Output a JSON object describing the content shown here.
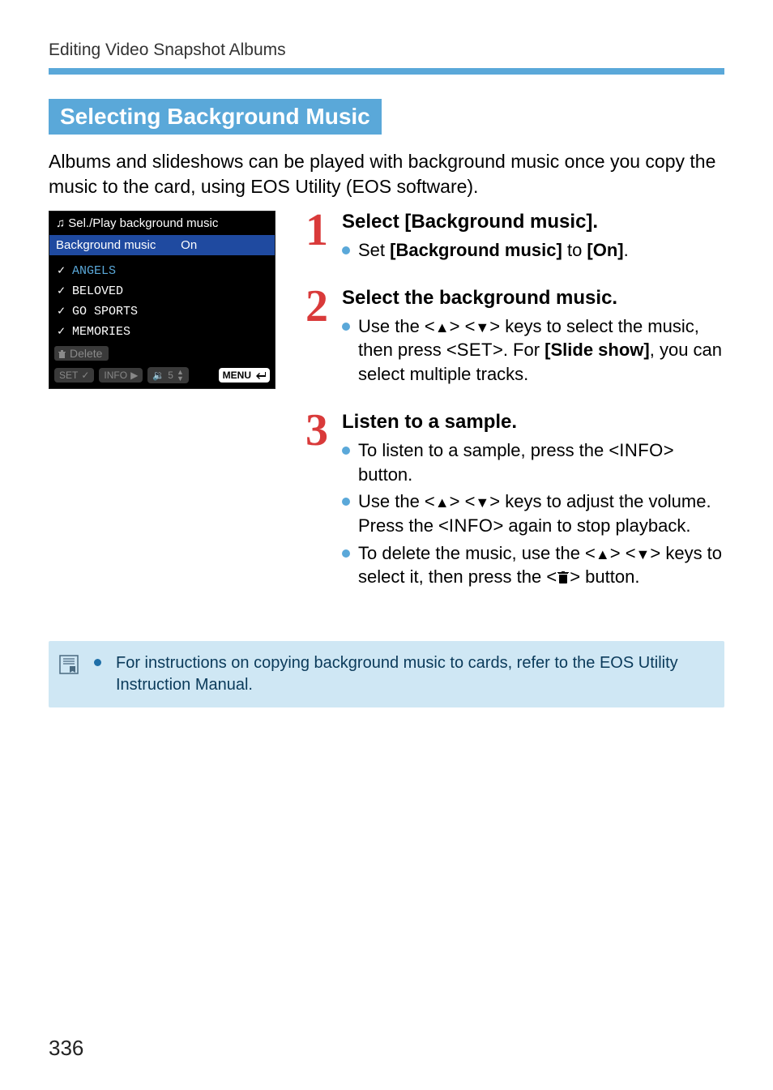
{
  "header": {
    "title": "Editing Video Snapshot Albums"
  },
  "section": {
    "title": "Selecting Background Music"
  },
  "intro": "Albums and slideshows can be played with background music once you copy the music to the card, using EOS Utility (EOS software).",
  "camera_menu": {
    "top": "Sel./Play background music",
    "bg_label": "Background music",
    "bg_value": "On",
    "items": [
      "ANGELS",
      "BELOVED",
      "GO SPORTS",
      "MEMORIES"
    ],
    "selected_index": 0,
    "delete_label": "Delete",
    "bottom": {
      "set": "SET",
      "info": "INFO",
      "vol": "5",
      "menu": "MENU"
    }
  },
  "steps": [
    {
      "num": "1",
      "title": "Select [Background music].",
      "bullets": [
        {
          "pre": "Set ",
          "b1": "[Background music]",
          "mid": " to ",
          "b2": "[On]",
          "post": "."
        }
      ]
    },
    {
      "num": "2",
      "title": "Select the background music.",
      "bullets": [
        {
          "text_parts": [
            "Use the <",
            {
              "k": "up"
            },
            "> <",
            {
              "k": "down"
            },
            "> keys to select the music, then press <",
            {
              "k": "set"
            },
            ">. For ",
            {
              "b": "[Slide show]"
            },
            ", you can select multiple tracks."
          ]
        }
      ]
    },
    {
      "num": "3",
      "title": "Listen to a sample.",
      "bullets": [
        {
          "text_parts": [
            "To listen to a sample, press the <",
            {
              "k": "info"
            },
            "> button."
          ]
        },
        {
          "text_parts": [
            "Use the <",
            {
              "k": "up"
            },
            "> <",
            {
              "k": "down"
            },
            "> keys to adjust the volume. Press the <",
            {
              "k": "info"
            },
            "> again to stop playback."
          ]
        },
        {
          "text_parts": [
            "To delete the music, use the <",
            {
              "k": "up"
            },
            "> <",
            {
              "k": "down"
            },
            "> keys to select it, then press the <",
            {
              "k": "trash"
            },
            "> button."
          ]
        }
      ]
    }
  ],
  "note": "For instructions on copying background music to cards, refer to the EOS Utility Instruction Manual.",
  "page_number": "336",
  "colors": {
    "accent": "#5aa8d9",
    "step_num": "#d93a3a",
    "menu_highlight": "#1f4aa0",
    "note_bg": "#cfe7f4",
    "note_text": "#0a3a5a"
  }
}
